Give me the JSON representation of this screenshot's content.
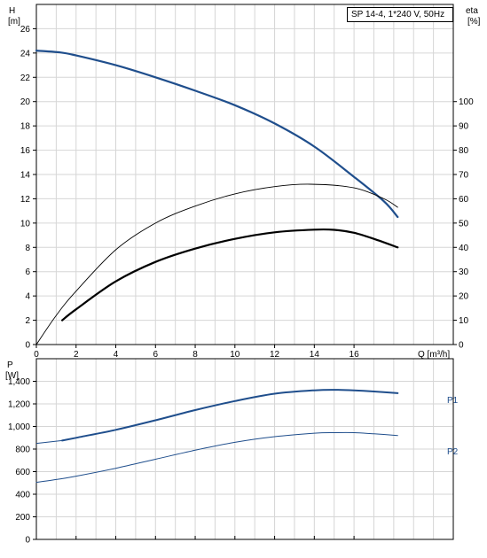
{
  "chart_data": [
    {
      "type": "line",
      "title": "SP 14-4, 1*240 V, 50Hz",
      "xlabel": "Q [m³/h]",
      "ylabel_left": [
        "H",
        "[m]"
      ],
      "ylabel_right": [
        "eta",
        "[%]"
      ],
      "xlim": [
        0,
        21
      ],
      "ylim_left": [
        0,
        28
      ],
      "ylim_right": [
        0,
        140
      ],
      "x_ticks": [
        0,
        2,
        4,
        6,
        8,
        10,
        12,
        14,
        16
      ],
      "y_ticks_left": [
        0,
        2,
        4,
        6,
        8,
        10,
        12,
        14,
        16,
        18,
        20,
        22,
        24,
        26
      ],
      "y_ticks_right": [
        0,
        10,
        20,
        30,
        40,
        50,
        60,
        70,
        80,
        90,
        100
      ],
      "grid": true,
      "series": [
        {
          "axis": "left",
          "color": "#1f4e8c",
          "width": 2.2,
          "x": [
            0,
            1.2,
            2,
            4,
            6,
            8,
            10,
            12,
            14,
            16,
            17.5,
            18.2
          ],
          "y": [
            24.2,
            24.05,
            23.8,
            23,
            22.0,
            20.9,
            19.7,
            18.2,
            16.3,
            13.8,
            11.8,
            10.5
          ]
        },
        {
          "axis": "right",
          "color": "#000000",
          "width": 0.9,
          "x": [
            0,
            1,
            2,
            4,
            6,
            8,
            10,
            12,
            13.8,
            16,
            17.5,
            18.2
          ],
          "y": [
            0,
            12,
            22,
            39,
            50,
            57,
            62,
            65,
            66,
            64.5,
            60,
            56.5
          ]
        },
        {
          "axis": "right",
          "color": "#000000",
          "width": 2.2,
          "x": [
            1.3,
            2,
            4,
            6,
            8,
            10,
            12,
            14,
            15,
            16,
            17,
            18.2
          ],
          "y": [
            10,
            14.5,
            26,
            34,
            39.5,
            43.5,
            46.2,
            47.3,
            47.2,
            46,
            43.5,
            40
          ]
        }
      ]
    },
    {
      "type": "line",
      "ylabel_left": [
        "P",
        "[W]"
      ],
      "xlim": [
        0,
        21
      ],
      "ylim": [
        0,
        1600
      ],
      "y_ticks": [
        0,
        200,
        400,
        600,
        800,
        "1,000",
        "1,200",
        "1,400"
      ],
      "y_tick_values": [
        0,
        200,
        400,
        600,
        800,
        1000,
        1200,
        1400
      ],
      "grid": true,
      "series": [
        {
          "name": "P1",
          "color": "#1f4e8c",
          "width": 2.0,
          "x": [
            0,
            1.3,
            2,
            4,
            6,
            8,
            10,
            12,
            14,
            15,
            16,
            17,
            18.2
          ],
          "y": [
            850,
            875,
            900,
            970,
            1055,
            1145,
            1225,
            1290,
            1320,
            1325,
            1320,
            1310,
            1295
          ],
          "dashed_until": 1.3
        },
        {
          "name": "P2",
          "color": "#1f4e8c",
          "width": 1.0,
          "x": [
            0,
            1,
            2,
            4,
            6,
            8,
            10,
            12,
            14,
            15,
            16,
            17,
            18.2
          ],
          "y": [
            505,
            530,
            560,
            630,
            710,
            790,
            860,
            910,
            940,
            945,
            945,
            935,
            920
          ]
        }
      ]
    }
  ]
}
